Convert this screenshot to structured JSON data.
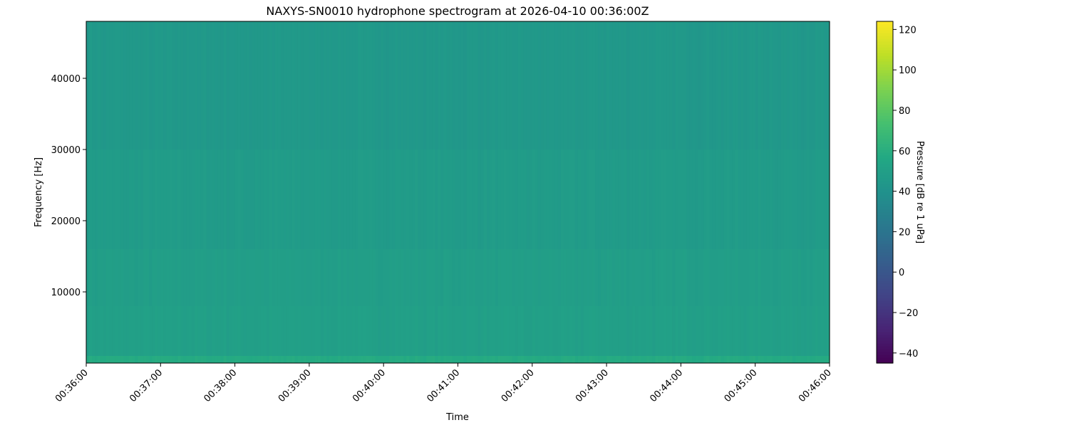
{
  "chart_data": {
    "type": "heatmap",
    "title": "NAXYS-SN0010 hydrophone spectrogram at 2026-04-10 00:36:00Z",
    "xlabel": "Time",
    "ylabel": "Frequency [Hz]",
    "colorbar_label": "Pressure [dB re 1 uPa]",
    "colormap": "viridis",
    "xlim": [
      "00:36:00",
      "00:46:00"
    ],
    "ylim": [
      0,
      48000
    ],
    "clim": [
      -45,
      124
    ],
    "x_ticks": [
      "00:36:00",
      "00:37:00",
      "00:38:00",
      "00:39:00",
      "00:40:00",
      "00:41:00",
      "00:42:00",
      "00:43:00",
      "00:44:00",
      "00:45:00",
      "00:46:00"
    ],
    "y_ticks": [
      10000,
      20000,
      30000,
      40000
    ],
    "y_tick_labels": [
      "10000",
      "20000",
      "30000",
      "40000"
    ],
    "colorbar_ticks": [
      -40,
      -20,
      0,
      20,
      40,
      60,
      80,
      100,
      120
    ],
    "colorbar_tick_labels": [
      "−40",
      "−20",
      "0",
      "20",
      "40",
      "60",
      "80",
      "100",
      "120"
    ],
    "frequency_bands": [
      {
        "from_hz": 0,
        "to_hz": 1000,
        "level_db": 58
      },
      {
        "from_hz": 1000,
        "to_hz": 8000,
        "level_db": 50
      },
      {
        "from_hz": 8000,
        "to_hz": 16000,
        "level_db": 49
      },
      {
        "from_hz": 16000,
        "to_hz": 30000,
        "level_db": 47
      },
      {
        "from_hz": 30000,
        "to_hz": 48000,
        "level_db": 45
      }
    ],
    "grid": false
  }
}
